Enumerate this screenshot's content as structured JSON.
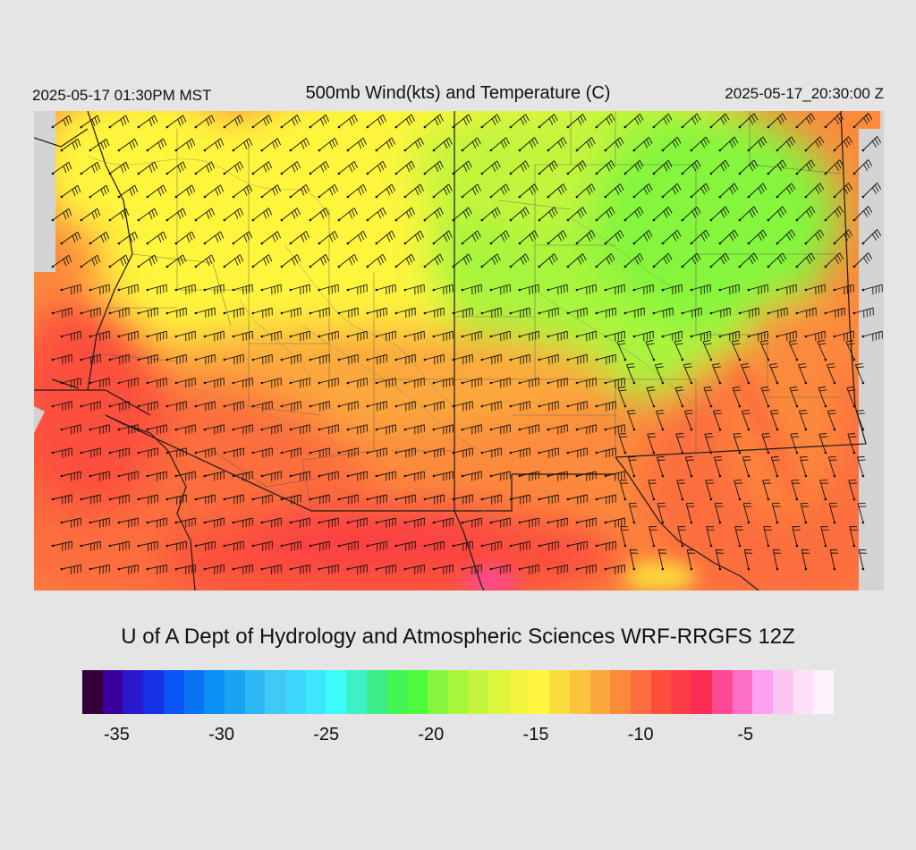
{
  "header": {
    "local_time": "2025-05-17 01:30PM MST",
    "title": "500mb Wind(kts) and Temperature (C)",
    "valid_time": "2025-05-17_20:30:00 Z"
  },
  "credit": "U of A Dept of Hydrology and Atmospheric Sciences WRF-RRGFS 12Z",
  "map": {
    "field": "temperature",
    "overlay": "wind-barbs",
    "background_color": "#d3d3d3"
  },
  "colorbar": {
    "colors": [
      "#33003a",
      "#3a0099",
      "#2a18cc",
      "#1431e6",
      "#0a53f5",
      "#0a72f5",
      "#0a8ff2",
      "#1aa3f2",
      "#2eb8f5",
      "#40c8f8",
      "#3dd6fa",
      "#3de6fb",
      "#3dfcfa",
      "#3df0c8",
      "#3deb88",
      "#42f555",
      "#4dfa3d",
      "#85f53d",
      "#a8f53d",
      "#c4f53d",
      "#dcf53d",
      "#f2f53d",
      "#fff53d",
      "#fcdc3d",
      "#fcc43d",
      "#fca83d",
      "#fc8a3d",
      "#fc6e3d",
      "#fc503d",
      "#fc3d45",
      "#fc2d55",
      "#fc4a95",
      "#fc6ec8",
      "#fca0f0",
      "#fcc4f0",
      "#fce0f8",
      "#fef2fc"
    ],
    "tick_labels": [
      "-35",
      "-30",
      "-25",
      "-20",
      "-15",
      "-10",
      "-5"
    ],
    "tick_values": [
      -35,
      -30,
      -25,
      -20,
      -15,
      -10,
      -5
    ],
    "min": -36,
    "max": -1
  }
}
